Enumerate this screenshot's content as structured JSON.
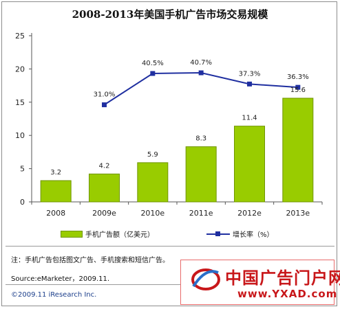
{
  "chart_data": {
    "title": "2008-2013年美国手机广告市场交易规模",
    "type": "bar+line",
    "categories": [
      "2008",
      "2009e",
      "2010e",
      "2011e",
      "2012e",
      "2013e"
    ],
    "series": [
      {
        "name": "手机广告额（亿美元）",
        "type": "bar",
        "values": [
          3.2,
          4.2,
          5.9,
          8.3,
          11.4,
          15.6
        ],
        "labels": [
          "3.2",
          "4.2",
          "5.9",
          "8.3",
          "11.4",
          "15.6"
        ],
        "color": "#99cc00"
      },
      {
        "name": "增长率（%）",
        "type": "line",
        "values": [
          null,
          31.0,
          40.5,
          40.7,
          37.3,
          36.3
        ],
        "labels": [
          "",
          "31.0%",
          "40.5%",
          "40.7%",
          "37.3%",
          "36.3%"
        ],
        "color": "#1f2fa0"
      }
    ],
    "yticks": [
      "0",
      "5",
      "10",
      "15",
      "20",
      "25"
    ],
    "ylim": [
      0,
      25
    ],
    "line_scale_note": "growth-rate line drawn against its own hidden scale",
    "grid": false,
    "legend_position": "bottom"
  },
  "notes": {
    "note": "注：手机广告包括图文广告、手机搜索和短信广告。",
    "source": "Source:eMarketer，2009.11.",
    "copyright": "©2009.11 iResearch Inc."
  },
  "watermark": {
    "name": "中国广告门户网",
    "url": "www.YXAD.com"
  }
}
